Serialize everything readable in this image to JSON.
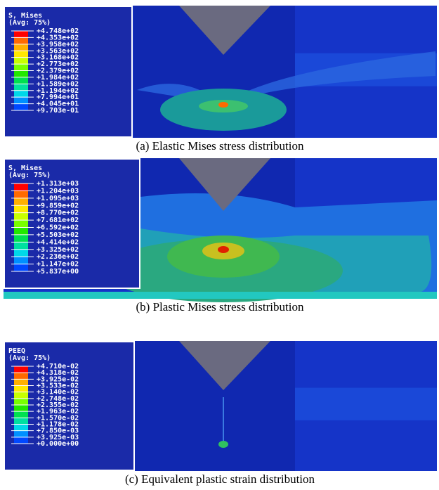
{
  "panels": [
    {
      "legend_title": [
        "S, Mises",
        "(Avg: 75%)"
      ],
      "legend_values": [
        "+4.748e+02",
        "+4.353e+02",
        "+3.958e+02",
        "+3.563e+02",
        "+3.168e+02",
        "+2.773e+02",
        "+2.379e+02",
        "+1.984e+02",
        "+1.589e+02",
        "+1.194e+02",
        "+7.994e+01",
        "+4.045e+01",
        "+9.703e-01"
      ],
      "caption": "(a) Elastic Mises stress distribution"
    },
    {
      "legend_title": [
        "S, Mises",
        "(Avg: 75%)"
      ],
      "legend_values": [
        "+1.313e+03",
        "+1.204e+03",
        "+1.095e+03",
        "+9.859e+02",
        "+8.770e+02",
        "+7.681e+02",
        "+6.592e+02",
        "+5.503e+02",
        "+4.414e+02",
        "+3.325e+02",
        "+2.236e+02",
        "+1.147e+02",
        "+5.837e+00"
      ],
      "caption": "(b) Plastic Mises stress distribution"
    },
    {
      "legend_title": [
        "PEEQ",
        "(Avg: 75%)"
      ],
      "legend_values": [
        "+4.710e-02",
        "+4.318e-02",
        "+3.925e-02",
        "+3.533e-02",
        "+3.140e-02",
        "+2.748e-02",
        "+2.355e-02",
        "+1.963e-02",
        "+1.570e-02",
        "+1.178e-02",
        "+7.850e-03",
        "+3.925e-03",
        "+0.000e+00"
      ],
      "caption": "(c) Equivalent plastic strain distribution"
    }
  ]
}
